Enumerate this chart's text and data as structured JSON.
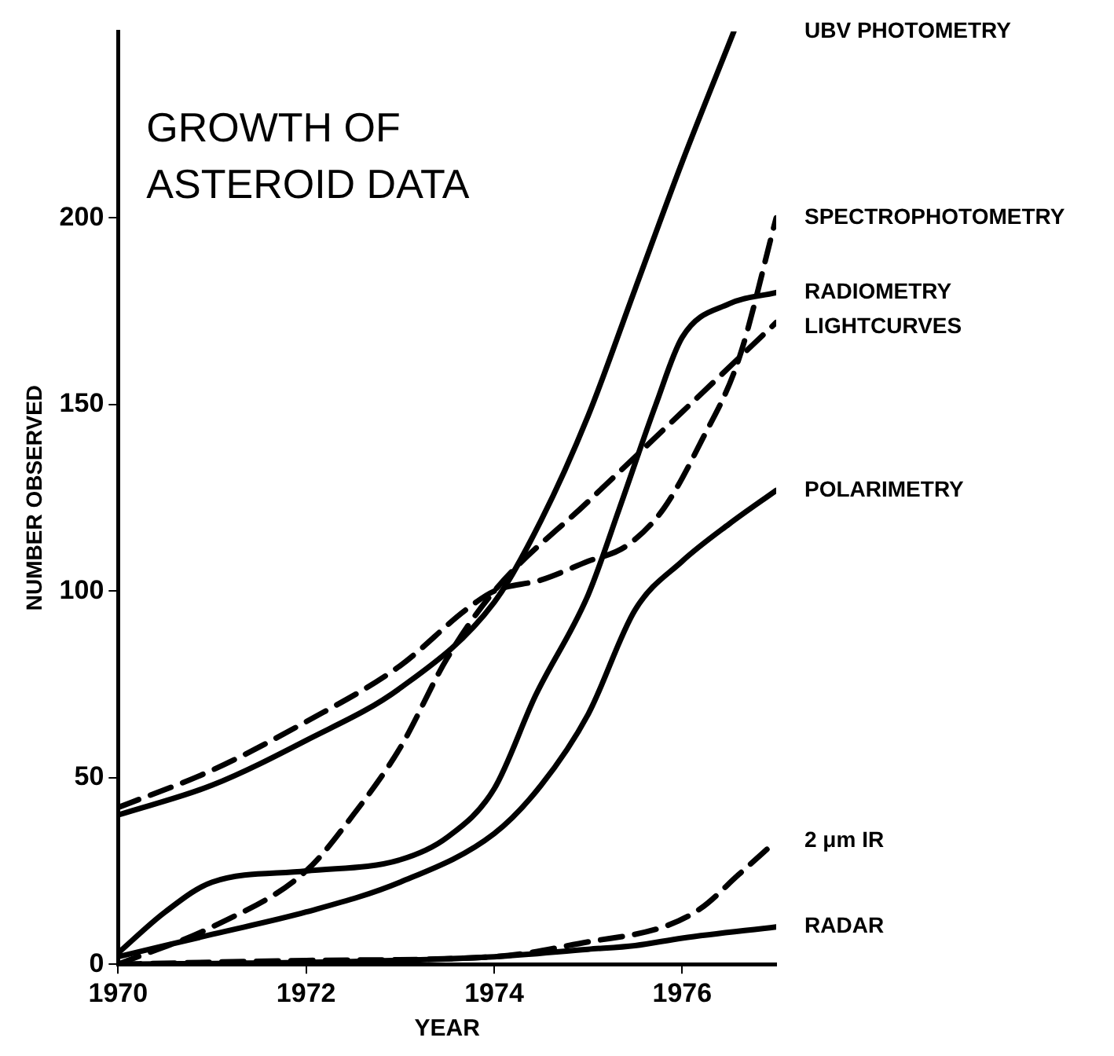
{
  "chart_data": {
    "type": "line",
    "title": "GROWTH OF\nASTEROID DATA",
    "xlabel": "YEAR",
    "ylabel": "NUMBER OBSERVED",
    "xlim": [
      1970,
      1977
    ],
    "xticks": [
      1970,
      1972,
      1974,
      1976
    ],
    "ylim": [
      0,
      250
    ],
    "yticks": [
      0,
      50,
      100,
      150,
      200
    ],
    "grid": false,
    "legend": false,
    "marker": "none",
    "series": [
      {
        "name": "UBV PHOTOMETRY",
        "color": "#000000",
        "line_style": "solid",
        "x": [
          1970,
          1971,
          1972,
          1973,
          1974,
          1974.5,
          1975,
          1975.5,
          1976,
          1976.55
        ],
        "values": [
          40,
          48,
          60,
          74,
          97,
          119,
          147,
          181,
          215,
          250
        ]
      },
      {
        "name": "SPECTROPHOTOMETRY",
        "color": "#000000",
        "line_style": "dashed",
        "x": [
          1970,
          1971,
          1972,
          1973,
          1973.7,
          1974,
          1974.5,
          1975,
          1975.4,
          1975.8,
          1976.2,
          1976.6,
          1977
        ],
        "values": [
          42,
          52,
          65,
          80,
          95,
          100,
          103,
          108,
          112,
          122,
          140,
          162,
          200
        ]
      },
      {
        "name": "RADIOMETRY",
        "color": "#000000",
        "line_style": "solid",
        "x": [
          1970,
          1970.5,
          1971,
          1972,
          1973,
          1973.5,
          1974,
          1974.44,
          1975,
          1975.33,
          1975.72,
          1976,
          1976.5,
          1977
        ],
        "values": [
          3,
          14,
          22,
          25,
          28,
          34,
          47,
          72,
          99,
          122,
          150,
          168,
          177,
          180
        ]
      },
      {
        "name": "LIGHTCURVES",
        "color": "#000000",
        "line_style": "dashed",
        "x": [
          1970,
          1971,
          1972,
          1972.5,
          1973,
          1973.5,
          1974,
          1975,
          1976,
          1977
        ],
        "values": [
          0,
          10,
          25,
          40,
          58,
          82,
          100,
          124,
          148,
          172
        ]
      },
      {
        "name": "POLARIMETRY",
        "color": "#000000",
        "line_style": "solid",
        "x": [
          1970,
          1971,
          1972,
          1973,
          1974,
          1974.5,
          1975,
          1975.5,
          1976,
          1976.5,
          1977
        ],
        "values": [
          2,
          8,
          14,
          22,
          35,
          48,
          67,
          95,
          108,
          118,
          127
        ]
      },
      {
        "name": "2 μm IR",
        "color": "#000000",
        "line_style": "dashed",
        "x": [
          1970,
          1972,
          1974,
          1975,
          1975.8,
          1976.2,
          1976.6,
          1977
        ],
        "values": [
          0,
          1,
          2,
          6,
          10,
          15,
          24,
          33
        ]
      },
      {
        "name": "RADAR",
        "color": "#000000",
        "line_style": "solid",
        "x": [
          1970,
          1972,
          1974,
          1975,
          1975.5,
          1976,
          1977
        ],
        "values": [
          0,
          0.5,
          2,
          4,
          5,
          7,
          10
        ]
      }
    ]
  }
}
